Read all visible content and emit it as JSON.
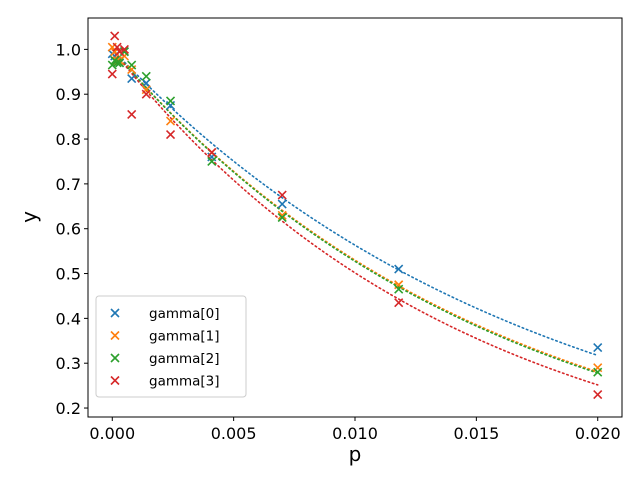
{
  "chart_data": {
    "type": "scatter",
    "title": "",
    "xlabel": "p",
    "ylabel": "y",
    "xlim": [
      -0.001,
      0.021
    ],
    "ylim": [
      0.18,
      1.07
    ],
    "xticks": [
      0.0,
      0.005,
      0.01,
      0.015,
      0.02
    ],
    "xtick_labels": [
      "0.000",
      "0.005",
      "0.010",
      "0.015",
      "0.020"
    ],
    "yticks": [
      0.2,
      0.3,
      0.4,
      0.5,
      0.6,
      0.7,
      0.8,
      0.9,
      1.0
    ],
    "ytick_labels": [
      "0.2",
      "0.3",
      "0.4",
      "0.5",
      "0.6",
      "0.7",
      "0.8",
      "0.9",
      "1.0"
    ],
    "grid": false,
    "legend_position": "lower-left",
    "series": [
      {
        "name": "gamma[0]",
        "color": "#1f77b4",
        "marker": "x",
        "x": [
          0.0,
          0.0001,
          0.0002,
          0.0003,
          0.0005,
          0.0008,
          0.0014,
          0.0024,
          0.0041,
          0.007,
          0.0118,
          0.02
        ],
        "y": [
          0.99,
          0.985,
          0.975,
          0.97,
          0.995,
          0.935,
          0.925,
          0.875,
          0.76,
          0.655,
          0.51,
          0.335
        ],
        "fit_decay": 57.4
      },
      {
        "name": "gamma[1]",
        "color": "#ff7f0e",
        "marker": "x",
        "x": [
          0.0,
          0.0001,
          0.0002,
          0.0003,
          0.0005,
          0.0008,
          0.0014,
          0.0024,
          0.0041,
          0.007,
          0.0118,
          0.02
        ],
        "y": [
          1.005,
          0.995,
          0.975,
          0.975,
          0.985,
          0.955,
          0.91,
          0.84,
          0.77,
          0.63,
          0.475,
          0.29
        ],
        "fit_decay": 63.5
      },
      {
        "name": "gamma[2]",
        "color": "#2ca02c",
        "marker": "x",
        "x": [
          0.0,
          0.0001,
          0.0002,
          0.0003,
          0.0005,
          0.0008,
          0.0014,
          0.0024,
          0.0041,
          0.007,
          0.0118,
          0.02
        ],
        "y": [
          0.965,
          0.975,
          0.97,
          0.97,
          0.995,
          0.965,
          0.94,
          0.885,
          0.75,
          0.625,
          0.465,
          0.28
        ],
        "fit_decay": 64.0
      },
      {
        "name": "gamma[3]",
        "color": "#d62728",
        "marker": "x",
        "x": [
          0.0,
          0.0001,
          0.0002,
          0.0003,
          0.0005,
          0.0008,
          0.0014,
          0.0024,
          0.0041,
          0.007,
          0.0118,
          0.02
        ],
        "y": [
          0.945,
          1.03,
          1.005,
          0.995,
          1.0,
          0.855,
          0.9,
          0.81,
          0.77,
          0.675,
          0.435,
          0.23
        ],
        "fit_decay": 69.0
      }
    ]
  }
}
